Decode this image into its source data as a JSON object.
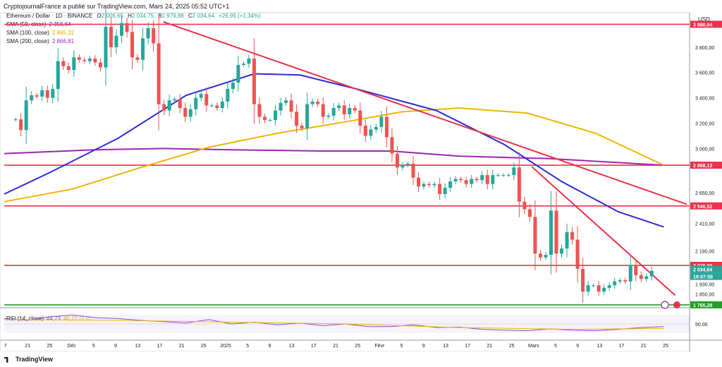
{
  "header": {
    "title": "CryptojournalFrance a publié sur TradingView.com, Mars 24, 2025 05:52 UTC+1"
  },
  "ohlc_header": {
    "symbol": "Ethereum / Dollar · 1D · BINANCE",
    "o_label": "O",
    "open": "2 006,69",
    "h_label": "H",
    "high": "2 034,75",
    "b_label": "B",
    "low": "1 979,88",
    "c_label": "C",
    "close": "2 034,64",
    "change": "+26,95 (+1,34%)"
  },
  "legend": {
    "sma50_label": "SMA (50, close)",
    "sma50_value": "2 356,64",
    "sma50_color": "#2b2bd9",
    "sma100_label": "SMA (100, close)",
    "sma100_value": "2 865,32",
    "sma100_color": "#f0b400",
    "sma200_label": "SMA (200, close)",
    "sma200_value": "2 866,81",
    "sma200_color": "#9c27b0",
    "rsi_label": "RSI (14, close)",
    "rsi_value": "44,73",
    "rsi_extra": "40,77 ∅ ∅"
  },
  "price_axis": {
    "currency": "USD",
    "ticks": [
      "3 800,00",
      "3 600,00",
      "3 400,00",
      "3 200,00",
      "3 000,00",
      "2 650,00",
      "2 410,00",
      "2 190,00",
      "1 930,00",
      "1 850,00"
    ],
    "tags": [
      {
        "text": "3 980,94",
        "color": "#e8334a"
      },
      {
        "text": "2 868,13",
        "color": "#e8334a"
      },
      {
        "text": "2 546,52",
        "color": "#e8334a"
      },
      {
        "text": "2 076,98",
        "color": "#e8334a"
      },
      {
        "text": "2 034,64",
        "color": "#26a69a"
      },
      {
        "text": "19:07:58",
        "color": "#26a69a"
      },
      {
        "text": "1 765,28",
        "color": "#22a022"
      }
    ],
    "rsi_tick": "50,00"
  },
  "time_axis": {
    "labels": [
      "7",
      "21",
      "25",
      "Déc",
      "5",
      "9",
      "13",
      "17",
      "21",
      "25",
      "2025",
      "5",
      "9",
      "13",
      "17",
      "21",
      "25",
      "Févr",
      "5",
      "9",
      "13",
      "17",
      "21",
      "25",
      "Mars",
      "5",
      "9",
      "13",
      "17",
      "21",
      "25"
    ]
  },
  "footer": {
    "brand": "TradingView"
  },
  "chart_data": {
    "type": "candlestick",
    "candles_close": [
      3230,
      3145,
      3380,
      3420,
      3410,
      3460,
      3400,
      3470,
      3690,
      3650,
      3620,
      3720,
      3700,
      3690,
      3710,
      3680,
      3640,
      3960,
      3800,
      3890,
      3990,
      3920,
      3720,
      3700,
      3870,
      3950,
      3830,
      3350,
      3300,
      3380,
      3390,
      3320,
      3250,
      3310,
      3400,
      3430,
      3340,
      3340,
      3320,
      3370,
      3470,
      3520,
      3660,
      3670,
      3710,
      3350,
      3250,
      3225,
      3225,
      3300,
      3360,
      3380,
      3290,
      3180,
      3160,
      3350,
      3370,
      3350,
      3250,
      3260,
      3320,
      3340,
      3270,
      3320,
      3300,
      3180,
      3100,
      3150,
      3170,
      3250,
      3090,
      2960,
      2850,
      2870,
      2880,
      2770,
      2700,
      2720,
      2710,
      2720,
      2640,
      2690,
      2740,
      2760,
      2750,
      2720,
      2760,
      2750,
      2790,
      2720,
      2790,
      2790,
      2790,
      2790,
      2850,
      2580,
      2520,
      2460,
      2170,
      2140,
      2160,
      2510,
      2170,
      2210,
      2340,
      2280,
      2050,
      1870,
      1920,
      1920,
      1870,
      1900,
      1920,
      1950,
      1960,
      1950,
      2080,
      2000,
      1970,
      1990,
      2034
    ],
    "sma50": [
      [
        0,
        2640
      ],
      [
        20,
        2810
      ],
      [
        50,
        3080
      ],
      [
        80,
        3420
      ],
      [
        110,
        3590
      ],
      [
        130,
        3580
      ],
      [
        155,
        3470
      ],
      [
        190,
        3300
      ],
      [
        220,
        3030
      ],
      [
        245,
        2740
      ],
      [
        270,
        2500
      ],
      [
        290,
        2380
      ]
    ],
    "sma100": [
      [
        0,
        2580
      ],
      [
        30,
        2680
      ],
      [
        60,
        2850
      ],
      [
        90,
        3010
      ],
      [
        120,
        3120
      ],
      [
        150,
        3210
      ],
      [
        175,
        3290
      ],
      [
        200,
        3320
      ],
      [
        230,
        3280
      ],
      [
        260,
        3120
      ],
      [
        290,
        2868
      ]
    ],
    "sma200": [
      [
        0,
        2960
      ],
      [
        40,
        2990
      ],
      [
        70,
        3000
      ],
      [
        100,
        2990
      ],
      [
        140,
        2980
      ],
      [
        170,
        2980
      ],
      [
        200,
        2940
      ],
      [
        240,
        2920
      ],
      [
        290,
        2868
      ]
    ],
    "resistance_levels": [
      3980.94,
      2868.13,
      2546.52,
      2076.98
    ],
    "support_level": 1765.28,
    "trendlines": [
      {
        "from": [
          70,
          4000
        ],
        "to": [
          300,
          2560
        ]
      },
      {
        "from": [
          232,
          2855
        ],
        "to": [
          295,
          1840
        ]
      }
    ],
    "rsi": [
      [
        0,
        62
      ],
      [
        10,
        58
      ],
      [
        20,
        66
      ],
      [
        30,
        70
      ],
      [
        40,
        64
      ],
      [
        50,
        62
      ],
      [
        60,
        58
      ],
      [
        70,
        55
      ],
      [
        80,
        52
      ],
      [
        90,
        60
      ],
      [
        100,
        50
      ],
      [
        110,
        54
      ],
      [
        120,
        48
      ],
      [
        130,
        52
      ],
      [
        140,
        46
      ],
      [
        150,
        50
      ],
      [
        160,
        44
      ],
      [
        170,
        44
      ],
      [
        180,
        48
      ],
      [
        190,
        42
      ],
      [
        200,
        43
      ],
      [
        210,
        38
      ],
      [
        220,
        36
      ],
      [
        230,
        35
      ],
      [
        240,
        39
      ],
      [
        250,
        36
      ],
      [
        260,
        35
      ],
      [
        270,
        38
      ],
      [
        280,
        42
      ],
      [
        290,
        44
      ]
    ],
    "rsi_ma": [
      [
        0,
        60
      ],
      [
        50,
        58
      ],
      [
        100,
        54
      ],
      [
        150,
        50
      ],
      [
        200,
        42
      ],
      [
        250,
        38
      ],
      [
        290,
        40
      ]
    ],
    "ylim": [
      1765,
      4050
    ],
    "xlabel": "",
    "ylabel": ""
  }
}
